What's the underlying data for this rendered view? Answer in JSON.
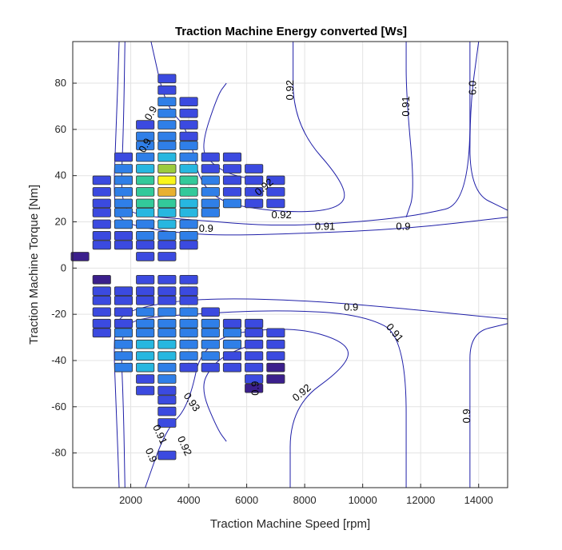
{
  "chart_data": {
    "type": "heatmap",
    "title": "Traction Machine Energy converted [Ws]",
    "xlabel": "Traction Machine Speed [rpm]",
    "ylabel": "Traction Machine Torque [Nm]",
    "xlim": [
      0,
      15000
    ],
    "ylim": [
      -95,
      98
    ],
    "xticks": [
      2000,
      4000,
      6000,
      8000,
      10000,
      12000,
      14000
    ],
    "yticks": [
      -80,
      -60,
      -40,
      -20,
      0,
      20,
      40,
      60,
      80
    ],
    "grid": true,
    "colors": {
      "contour": "#1f1fa8",
      "cell_border": "#333333",
      "scale": [
        "#3b1f8c",
        "#3b4ae0",
        "#2f7fe8",
        "#27b7e0",
        "#33c99a",
        "#9ccb3d",
        "#e8b030",
        "#f9f51a"
      ]
    },
    "x_spacing": 750,
    "y_spacing": 4.8,
    "cells": [
      [
        250,
        5,
        0.05
      ],
      [
        1000,
        38,
        0.08
      ],
      [
        1000,
        33,
        0.08
      ],
      [
        1000,
        28,
        0.1
      ],
      [
        1000,
        24,
        0.1
      ],
      [
        1000,
        19,
        0.1
      ],
      [
        1000,
        14,
        0.1
      ],
      [
        1000,
        10,
        0.1
      ],
      [
        1750,
        48,
        0.1
      ],
      [
        1750,
        43,
        0.25
      ],
      [
        1750,
        38,
        0.3
      ],
      [
        1750,
        33,
        0.3
      ],
      [
        1750,
        28,
        0.3
      ],
      [
        1750,
        24,
        0.25
      ],
      [
        1750,
        19,
        0.25
      ],
      [
        1750,
        14,
        0.2
      ],
      [
        1750,
        10,
        0.15
      ],
      [
        2500,
        62,
        0.2
      ],
      [
        2500,
        57,
        0.3
      ],
      [
        2500,
        53,
        0.3
      ],
      [
        2500,
        48,
        0.35
      ],
      [
        2500,
        43,
        0.45
      ],
      [
        2500,
        38,
        0.5
      ],
      [
        2500,
        33,
        0.6
      ],
      [
        2500,
        28,
        0.55
      ],
      [
        2500,
        24,
        0.4
      ],
      [
        2500,
        19,
        0.35
      ],
      [
        2500,
        14,
        0.25
      ],
      [
        2500,
        10,
        0.15
      ],
      [
        2500,
        5,
        0.1
      ],
      [
        3250,
        82,
        0.1
      ],
      [
        3250,
        77,
        0.2
      ],
      [
        3250,
        72,
        0.25
      ],
      [
        3250,
        67,
        0.3
      ],
      [
        3250,
        62,
        0.3
      ],
      [
        3250,
        57,
        0.35
      ],
      [
        3250,
        53,
        0.35
      ],
      [
        3250,
        48,
        0.45
      ],
      [
        3250,
        43,
        0.7
      ],
      [
        3250,
        38,
        1.0
      ],
      [
        3250,
        33,
        0.85
      ],
      [
        3250,
        28,
        0.6
      ],
      [
        3250,
        24,
        0.45
      ],
      [
        3250,
        19,
        0.4
      ],
      [
        3250,
        14,
        0.35
      ],
      [
        3250,
        10,
        0.2
      ],
      [
        3250,
        5,
        0.1
      ],
      [
        4000,
        72,
        0.1
      ],
      [
        4000,
        67,
        0.15
      ],
      [
        4000,
        62,
        0.2
      ],
      [
        4000,
        57,
        0.2
      ],
      [
        4000,
        53,
        0.25
      ],
      [
        4000,
        48,
        0.3
      ],
      [
        4000,
        43,
        0.4
      ],
      [
        4000,
        38,
        0.5
      ],
      [
        4000,
        33,
        0.55
      ],
      [
        4000,
        28,
        0.45
      ],
      [
        4000,
        24,
        0.4
      ],
      [
        4000,
        19,
        0.35
      ],
      [
        4000,
        14,
        0.25
      ],
      [
        4000,
        10,
        0.15
      ],
      [
        4750,
        48,
        0.15
      ],
      [
        4750,
        43,
        0.2
      ],
      [
        4750,
        38,
        0.25
      ],
      [
        4750,
        33,
        0.3
      ],
      [
        4750,
        28,
        0.35
      ],
      [
        4750,
        24,
        0.3
      ],
      [
        5500,
        48,
        0.1
      ],
      [
        5500,
        43,
        0.15
      ],
      [
        5500,
        38,
        0.2
      ],
      [
        5500,
        33,
        0.2
      ],
      [
        5500,
        28,
        0.3
      ],
      [
        6250,
        43,
        0.1
      ],
      [
        6250,
        38,
        0.15
      ],
      [
        6250,
        33,
        0.2
      ],
      [
        6250,
        28,
        0.15
      ],
      [
        7000,
        38,
        0.1
      ],
      [
        7000,
        33,
        0.12
      ],
      [
        7000,
        28,
        0.1
      ],
      [
        1000,
        -5,
        0.05
      ],
      [
        1000,
        -10,
        0.08
      ],
      [
        1000,
        -14,
        0.1
      ],
      [
        1000,
        -19,
        0.1
      ],
      [
        1000,
        -24,
        0.1
      ],
      [
        1000,
        -28,
        0.1
      ],
      [
        1750,
        -10,
        0.1
      ],
      [
        1750,
        -14,
        0.15
      ],
      [
        1750,
        -19,
        0.2
      ],
      [
        1750,
        -24,
        0.2
      ],
      [
        1750,
        -28,
        0.25
      ],
      [
        1750,
        -33,
        0.3
      ],
      [
        1750,
        -38,
        0.3
      ],
      [
        1750,
        -43,
        0.25
      ],
      [
        2500,
        -5,
        0.1
      ],
      [
        2500,
        -10,
        0.15
      ],
      [
        2500,
        -14,
        0.2
      ],
      [
        2500,
        -19,
        0.25
      ],
      [
        2500,
        -24,
        0.3
      ],
      [
        2500,
        -28,
        0.35
      ],
      [
        2500,
        -33,
        0.4
      ],
      [
        2500,
        -38,
        0.45
      ],
      [
        2500,
        -43,
        0.4
      ],
      [
        2500,
        -48,
        0.15
      ],
      [
        2500,
        -53,
        0.1
      ],
      [
        3250,
        -5,
        0.1
      ],
      [
        3250,
        -10,
        0.15
      ],
      [
        3250,
        -14,
        0.2
      ],
      [
        3250,
        -19,
        0.25
      ],
      [
        3250,
        -24,
        0.3
      ],
      [
        3250,
        -28,
        0.35
      ],
      [
        3250,
        -33,
        0.4
      ],
      [
        3250,
        -38,
        0.45
      ],
      [
        3250,
        -43,
        0.35
      ],
      [
        3250,
        -48,
        0.25
      ],
      [
        3250,
        -53,
        0.2
      ],
      [
        3250,
        -57,
        0.15
      ],
      [
        3250,
        -62,
        0.1
      ],
      [
        3250,
        -67,
        0.1
      ],
      [
        3250,
        -81,
        0.08
      ],
      [
        4000,
        -5,
        0.1
      ],
      [
        4000,
        -10,
        0.15
      ],
      [
        4000,
        -14,
        0.2
      ],
      [
        4000,
        -19,
        0.25
      ],
      [
        4000,
        -24,
        0.3
      ],
      [
        4000,
        -28,
        0.35
      ],
      [
        4000,
        -33,
        0.35
      ],
      [
        4000,
        -38,
        0.3
      ],
      [
        4000,
        -43,
        0.2
      ],
      [
        4750,
        -19,
        0.15
      ],
      [
        4750,
        -24,
        0.25
      ],
      [
        4750,
        -28,
        0.3
      ],
      [
        4750,
        -33,
        0.3
      ],
      [
        4750,
        -38,
        0.25
      ],
      [
        4750,
        -43,
        0.2
      ],
      [
        5500,
        -24,
        0.2
      ],
      [
        5500,
        -28,
        0.25
      ],
      [
        5500,
        -33,
        0.25
      ],
      [
        5500,
        -38,
        0.2
      ],
      [
        5500,
        -43,
        0.15
      ],
      [
        6250,
        -24,
        0.1
      ],
      [
        6250,
        -28,
        0.15
      ],
      [
        6250,
        -33,
        0.15
      ],
      [
        6250,
        -38,
        0.12
      ],
      [
        6250,
        -43,
        0.1
      ],
      [
        6250,
        -48,
        0.08
      ],
      [
        6250,
        -52,
        0.05
      ],
      [
        7000,
        -28,
        0.08
      ],
      [
        7000,
        -33,
        0.08
      ],
      [
        7000,
        -38,
        0.08
      ],
      [
        7000,
        -43,
        0.05
      ],
      [
        7000,
        -48,
        0.05
      ]
    ],
    "contours": [
      {
        "level": "0.9",
        "points": [
          [
            1600,
            98
          ],
          [
            1500,
            60
          ],
          [
            1400,
            30
          ],
          [
            1600,
            20
          ],
          [
            3000,
            16
          ],
          [
            5000,
            14
          ],
          [
            8000,
            15
          ],
          [
            11500,
            17
          ],
          [
            15000,
            22
          ]
        ]
      },
      {
        "level": "0.91",
        "points": [
          [
            1800,
            98
          ],
          [
            1750,
            60
          ],
          [
            1650,
            30
          ],
          [
            2000,
            23
          ],
          [
            4000,
            21
          ],
          [
            7000,
            18
          ],
          [
            10000,
            20
          ],
          [
            12000,
            23
          ],
          [
            13700,
            28
          ],
          [
            13700,
            98
          ]
        ]
      },
      {
        "level": "0.92",
        "points": [
          [
            7600,
            98
          ],
          [
            7600,
            62
          ],
          [
            9500,
            35
          ],
          [
            9200,
            25
          ],
          [
            7000,
            24
          ],
          [
            4500,
            30
          ],
          [
            4000,
            60
          ],
          [
            3200,
            70
          ],
          [
            2700,
            98
          ]
        ]
      },
      {
        "level": "0.93",
        "points": [
          [
            6500,
            38
          ],
          [
            5500,
            40
          ],
          [
            4800,
            45
          ],
          [
            4400,
            52
          ],
          [
            5000,
            75
          ],
          [
            5300,
            80
          ]
        ]
      },
      {
        "level": "0.91",
        "points": [
          [
            11500,
            98
          ],
          [
            11500,
            75
          ],
          [
            11800,
            33
          ],
          [
            11500,
            22
          ]
        ]
      },
      {
        "level": "0.92",
        "points": [
          [
            14000,
            98
          ],
          [
            13700,
            70
          ],
          [
            13700,
            33
          ],
          [
            15000,
            25
          ]
        ]
      },
      {
        "level": "0.9",
        "points": [
          [
            1600,
            -95
          ],
          [
            1500,
            -60
          ],
          [
            1400,
            -30
          ],
          [
            1600,
            -20
          ],
          [
            3000,
            -15
          ],
          [
            5000,
            -13
          ],
          [
            8000,
            -14
          ],
          [
            11000,
            -17
          ],
          [
            15000,
            -22
          ]
        ]
      },
      {
        "level": "0.91",
        "points": [
          [
            1800,
            -95
          ],
          [
            1750,
            -60
          ],
          [
            1650,
            -30
          ],
          [
            2000,
            -22
          ],
          [
            4000,
            -20
          ],
          [
            7000,
            -18
          ],
          [
            10000,
            -20
          ],
          [
            11500,
            -30
          ],
          [
            11500,
            -95
          ]
        ]
      },
      {
        "level": "0.92",
        "points": [
          [
            7500,
            -95
          ],
          [
            7500,
            -60
          ],
          [
            9500,
            -42
          ],
          [
            9500,
            -32
          ],
          [
            7500,
            -25
          ],
          [
            4500,
            -30
          ],
          [
            4000,
            -60
          ],
          [
            3200,
            -70
          ],
          [
            2500,
            -95
          ]
        ]
      },
      {
        "level": "0.93",
        "points": [
          [
            6500,
            -32
          ],
          [
            5500,
            -36
          ],
          [
            4800,
            -42
          ],
          [
            4400,
            -52
          ],
          [
            5000,
            -70
          ],
          [
            5300,
            -75
          ]
        ]
      },
      {
        "level": "0.9",
        "points": [
          [
            13700,
            -95
          ],
          [
            13700,
            -50
          ],
          [
            13700,
            -28
          ],
          [
            15000,
            -24
          ]
        ]
      }
    ],
    "contour_labels": [
      {
        "text": "0.92",
        "x": 7500,
        "y": 77,
        "rot": -90
      },
      {
        "text": "0.91",
        "x": 11500,
        "y": 70,
        "rot": -90
      },
      {
        "text": "6.0",
        "x": 13800,
        "y": 78,
        "rot": -90
      },
      {
        "text": "0.9",
        "x": 2700,
        "y": 67,
        "rot": -60
      },
      {
        "text": "0.9",
        "x": 2500,
        "y": 53,
        "rot": -60
      },
      {
        "text": "0.9",
        "x": 4600,
        "y": 17,
        "rot": 0
      },
      {
        "text": "0.92",
        "x": 7200,
        "y": 23,
        "rot": 0
      },
      {
        "text": "0.91",
        "x": 8700,
        "y": 18,
        "rot": 0
      },
      {
        "text": "0.9",
        "x": 11400,
        "y": 18,
        "rot": 0
      },
      {
        "text": "0.92",
        "x": 6600,
        "y": 35,
        "rot": -40
      },
      {
        "text": "0.9",
        "x": 9600,
        "y": -17,
        "rot": 0
      },
      {
        "text": "0.91",
        "x": 11100,
        "y": -28,
        "rot": 50
      },
      {
        "text": "0.92",
        "x": 7900,
        "y": -54,
        "rot": -40
      },
      {
        "text": "0.93",
        "x": 4100,
        "y": -58,
        "rot": 55
      },
      {
        "text": "0.91",
        "x": 3000,
        "y": -72,
        "rot": 65
      },
      {
        "text": "0.92",
        "x": 3850,
        "y": -77,
        "rot": 65
      },
      {
        "text": "0.9",
        "x": 2700,
        "y": -81,
        "rot": 65
      },
      {
        "text": "0.9",
        "x": 13600,
        "y": -64,
        "rot": -90
      },
      {
        "text": "0.9",
        "x": 6300,
        "y": -52,
        "rot": -90
      }
    ]
  }
}
